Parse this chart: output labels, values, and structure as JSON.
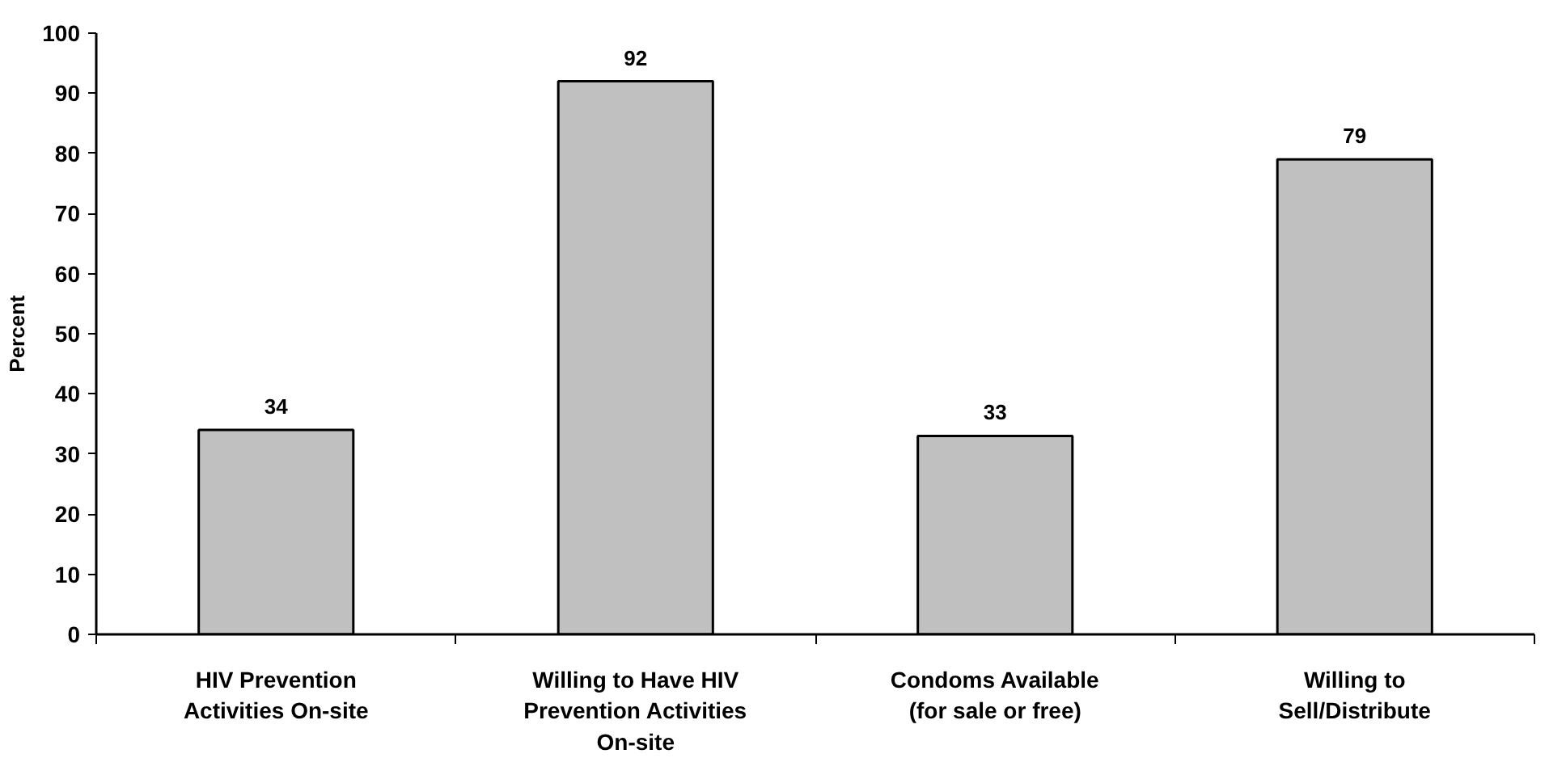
{
  "chart_data": {
    "type": "bar",
    "ylabel": "Percent",
    "categories": [
      "HIV Prevention Activities On-site",
      "Willing to Have HIV Prevention Activities On-site",
      "Condoms Available (for sale or free)",
      "Willing to Sell/Distribute"
    ],
    "values": [
      34,
      92,
      33,
      79
    ],
    "color": "#c0c0c0",
    "ylim": [
      0,
      100
    ],
    "yticks": [
      0,
      10,
      20,
      30,
      40,
      50,
      60,
      70,
      80,
      90,
      100
    ],
    "data_labels": true,
    "grid": false
  }
}
